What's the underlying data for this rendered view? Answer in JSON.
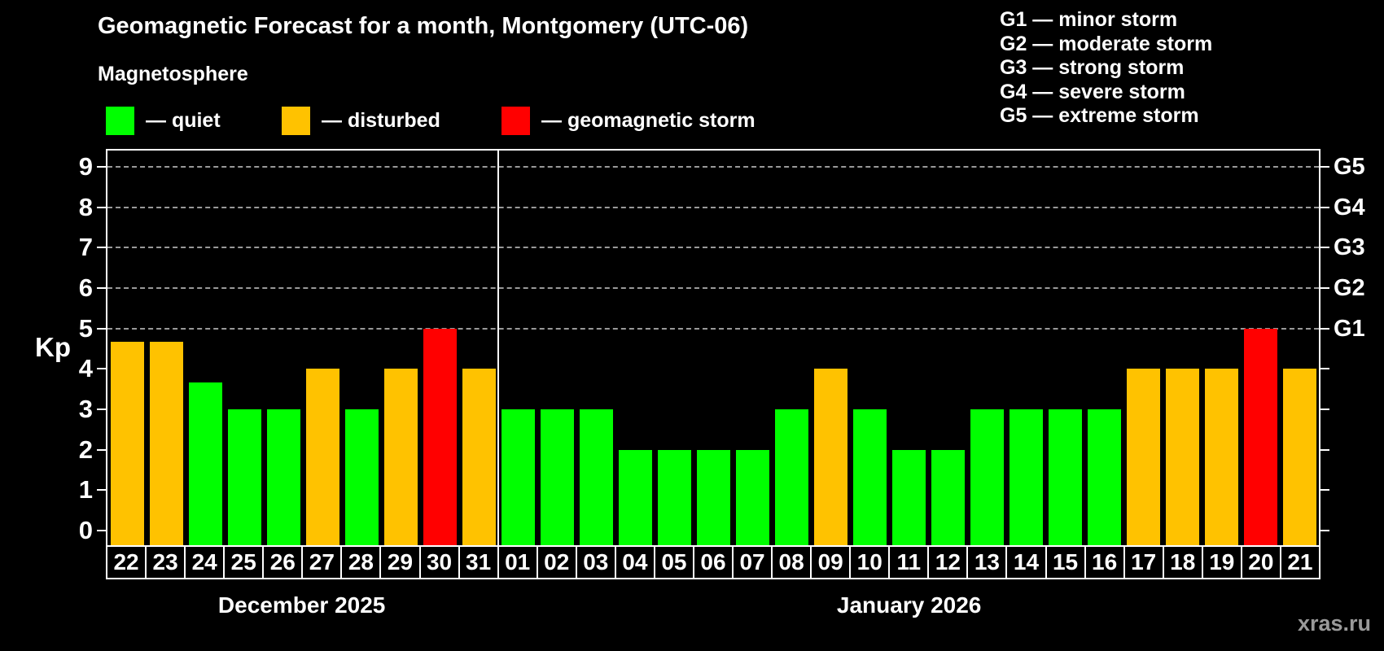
{
  "title": "Geomagnetic Forecast for a month, Montgomery (UTC-06)",
  "subtitle": "Magnetosphere",
  "legend": {
    "quiet": "— quiet",
    "disturbed": "— disturbed",
    "storm": "— geomagnetic storm"
  },
  "g_legend": [
    "G1 — minor storm",
    "G2 — moderate storm",
    "G3 — strong storm",
    "G4 — severe storm",
    "G5 — extreme storm"
  ],
  "watermark": "xras.ru",
  "colors": {
    "quiet": "#00ff00",
    "disturbed": "#ffc200",
    "storm": "#ff0000",
    "grid": "#999999",
    "axis": "#ffffff",
    "watermark": "#9a9a9a"
  },
  "chart_data": {
    "type": "bar",
    "title": "Geomagnetic Forecast for a month, Montgomery (UTC-06)",
    "xlabel": "",
    "ylabel": "Kp",
    "ylim": [
      -0.4,
      9.4
    ],
    "grid": true,
    "grid_levels": [
      5,
      6,
      7,
      8,
      9
    ],
    "y_ticks": [
      0,
      1,
      2,
      3,
      4,
      5,
      6,
      7,
      8,
      9
    ],
    "right_axis": [
      {
        "kp": 5,
        "label": "G1"
      },
      {
        "kp": 6,
        "label": "G2"
      },
      {
        "kp": 7,
        "label": "G3"
      },
      {
        "kp": 8,
        "label": "G4"
      },
      {
        "kp": 9,
        "label": "G5"
      }
    ],
    "legend_position": "top",
    "months": [
      {
        "name": "December 2025",
        "count": 10
      },
      {
        "name": "January 2026",
        "count": 21
      }
    ],
    "bars": [
      {
        "day": "22",
        "kp": 4.67,
        "status": "disturbed"
      },
      {
        "day": "23",
        "kp": 4.67,
        "status": "disturbed"
      },
      {
        "day": "24",
        "kp": 3.67,
        "status": "quiet"
      },
      {
        "day": "25",
        "kp": 3,
        "status": "quiet"
      },
      {
        "day": "26",
        "kp": 3,
        "status": "quiet"
      },
      {
        "day": "27",
        "kp": 4,
        "status": "disturbed"
      },
      {
        "day": "28",
        "kp": 3,
        "status": "quiet"
      },
      {
        "day": "29",
        "kp": 4,
        "status": "disturbed"
      },
      {
        "day": "30",
        "kp": 5,
        "status": "storm"
      },
      {
        "day": "31",
        "kp": 4,
        "status": "disturbed"
      },
      {
        "day": "01",
        "kp": 3,
        "status": "quiet"
      },
      {
        "day": "02",
        "kp": 3,
        "status": "quiet"
      },
      {
        "day": "03",
        "kp": 3,
        "status": "quiet"
      },
      {
        "day": "04",
        "kp": 2,
        "status": "quiet"
      },
      {
        "day": "05",
        "kp": 2,
        "status": "quiet"
      },
      {
        "day": "06",
        "kp": 2,
        "status": "quiet"
      },
      {
        "day": "07",
        "kp": 2,
        "status": "quiet"
      },
      {
        "day": "08",
        "kp": 3,
        "status": "quiet"
      },
      {
        "day": "09",
        "kp": 4,
        "status": "disturbed"
      },
      {
        "day": "10",
        "kp": 3,
        "status": "quiet"
      },
      {
        "day": "11",
        "kp": 2,
        "status": "quiet"
      },
      {
        "day": "12",
        "kp": 2,
        "status": "quiet"
      },
      {
        "day": "13",
        "kp": 3,
        "status": "quiet"
      },
      {
        "day": "14",
        "kp": 3,
        "status": "quiet"
      },
      {
        "day": "15",
        "kp": 3,
        "status": "quiet"
      },
      {
        "day": "16",
        "kp": 3,
        "status": "quiet"
      },
      {
        "day": "17",
        "kp": 4,
        "status": "disturbed"
      },
      {
        "day": "18",
        "kp": 4,
        "status": "disturbed"
      },
      {
        "day": "19",
        "kp": 4,
        "status": "disturbed"
      },
      {
        "day": "20",
        "kp": 5,
        "status": "storm"
      },
      {
        "day": "21",
        "kp": 4,
        "status": "disturbed"
      }
    ]
  }
}
